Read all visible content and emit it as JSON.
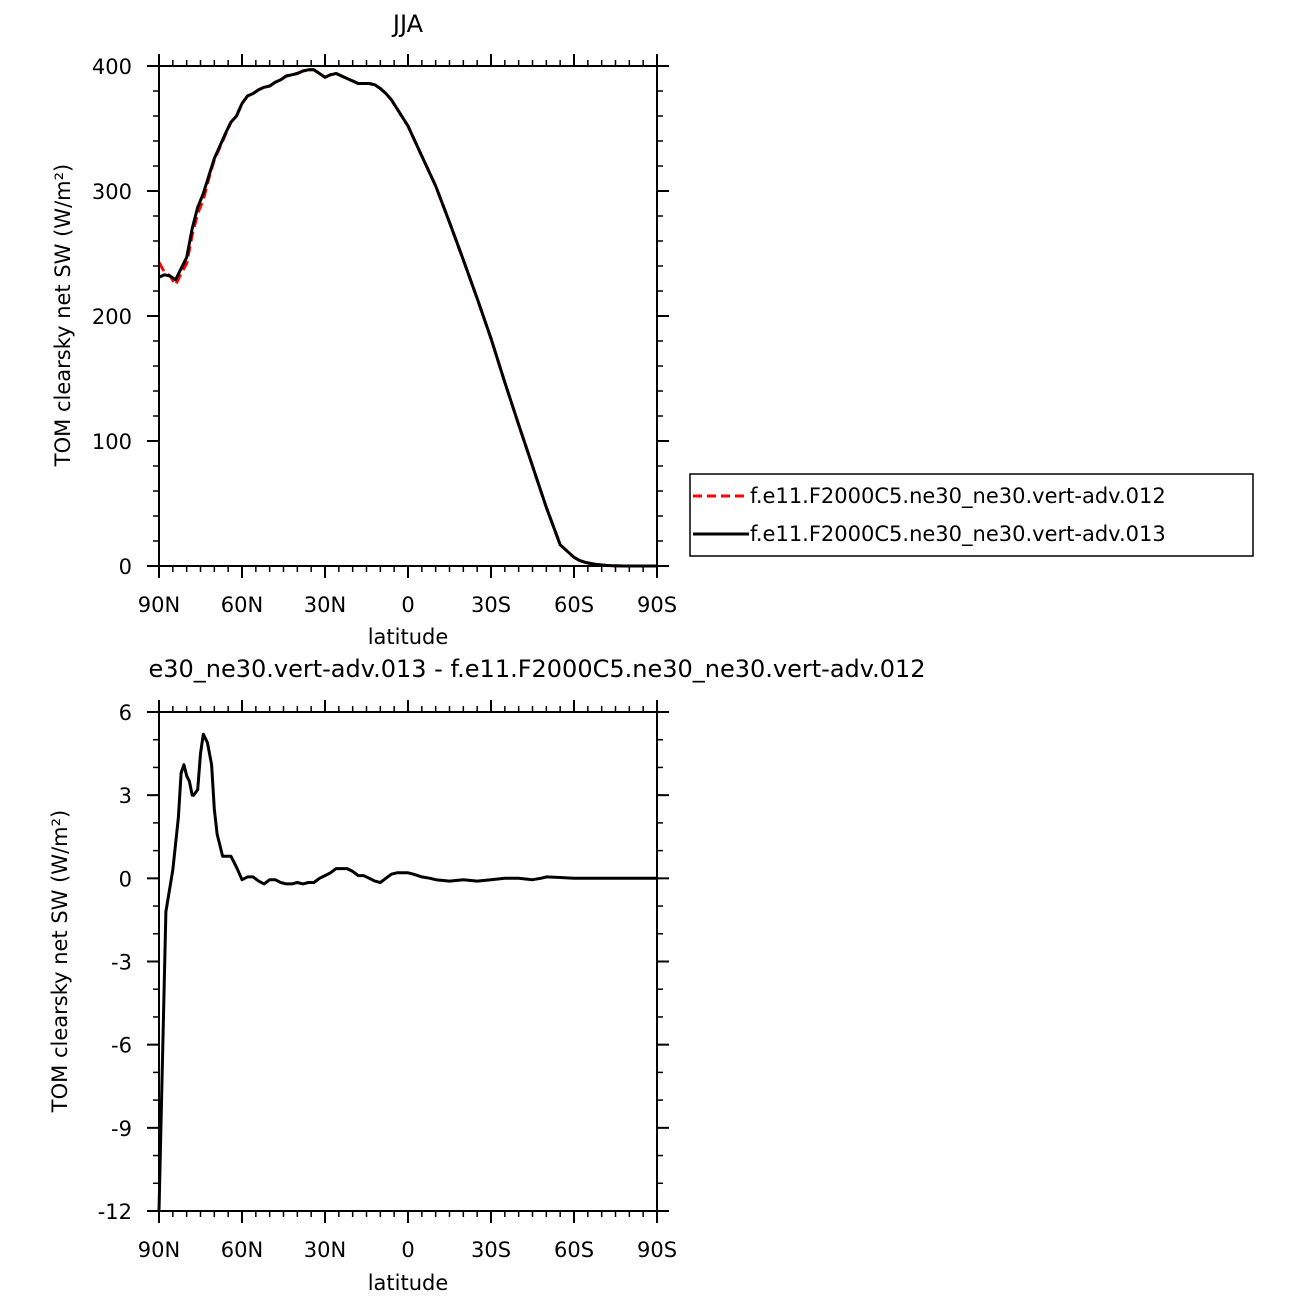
{
  "chart_data": [
    {
      "type": "line",
      "title": "JJA",
      "xlabel": "latitude",
      "ylabel": "TOM clearsky net SW (W/m²)",
      "xlim": [
        90,
        -90
      ],
      "ylim": [
        0,
        400
      ],
      "xticks": [
        90,
        60,
        30,
        0,
        -30,
        -60,
        -90
      ],
      "xtick_labels": [
        "90N",
        "60N",
        "30N",
        "0",
        "30S",
        "60S",
        "90S"
      ],
      "yticks": [
        0,
        100,
        200,
        300,
        400
      ],
      "ytick_labels": [
        "0",
        "100",
        "200",
        "300",
        "400"
      ],
      "legend_position": "right",
      "series": [
        {
          "name": "f.e11.F2000C5.ne30_ne30.vert-adv.012",
          "color": "#ff0000",
          "dash": "dashed",
          "x": [
            90,
            88,
            86,
            84,
            82,
            80,
            78,
            76,
            74,
            72,
            70,
            68,
            66,
            64,
            62,
            60,
            58,
            56,
            54,
            52,
            50,
            48,
            46,
            44,
            42,
            40,
            38,
            36,
            34,
            32,
            30,
            28,
            26,
            24,
            22,
            20,
            18,
            16,
            14,
            12,
            10,
            8,
            6,
            4,
            2,
            0,
            -5,
            -10,
            -15,
            -20,
            -25,
            -30,
            -35,
            -40,
            -45,
            -50,
            -55,
            -60,
            -62,
            -64,
            -66,
            -68,
            -70,
            -72,
            -74,
            -76,
            -78,
            -80,
            -82,
            -84,
            -86,
            -88,
            -90
          ],
          "y": [
            243,
            235,
            232,
            225,
            234,
            242,
            265,
            282,
            293,
            310,
            325,
            335,
            345,
            355,
            360,
            370,
            376,
            378,
            381,
            383,
            384,
            387,
            389,
            392,
            393,
            394,
            396,
            397,
            397,
            394,
            391,
            393,
            394,
            392,
            390,
            388,
            386,
            386,
            386,
            385,
            382,
            378,
            373,
            366,
            359,
            352,
            328,
            304,
            275,
            245,
            214,
            182,
            147,
            113,
            80,
            47,
            17,
            7,
            4.5,
            3.0,
            2.0,
            1.3,
            0.8,
            0.4,
            0.2,
            0.1,
            0,
            0,
            0,
            0,
            0,
            0,
            0
          ]
        },
        {
          "name": "f.e11.F2000C5.ne30_ne30.vert-adv.013",
          "color": "#000000",
          "dash": "solid",
          "x": [
            90,
            88,
            86,
            84,
            82,
            80,
            78,
            76,
            74,
            72,
            70,
            68,
            66,
            64,
            62,
            60,
            58,
            56,
            54,
            52,
            50,
            48,
            46,
            44,
            42,
            40,
            38,
            36,
            34,
            32,
            30,
            28,
            26,
            24,
            22,
            20,
            18,
            16,
            14,
            12,
            10,
            8,
            6,
            4,
            2,
            0,
            -5,
            -10,
            -15,
            -20,
            -25,
            -30,
            -35,
            -40,
            -45,
            -50,
            -55,
            -60,
            -62,
            -64,
            -66,
            -68,
            -70,
            -72,
            -74,
            -76,
            -78,
            -80,
            -82,
            -84,
            -86,
            -88,
            -90
          ],
          "y": [
            231,
            233,
            232,
            229,
            238,
            247,
            270,
            287,
            298,
            312,
            326,
            336,
            346,
            355,
            360,
            370,
            376,
            378,
            381,
            383,
            384,
            387,
            389,
            392,
            393,
            394,
            396,
            397,
            397,
            394,
            391,
            393,
            394,
            392,
            390,
            388,
            386,
            386,
            386,
            385,
            382,
            378,
            373,
            366,
            359,
            352,
            328,
            304,
            275,
            245,
            214,
            182,
            147,
            113,
            80,
            47,
            17,
            7,
            4.5,
            3.0,
            2.0,
            1.3,
            0.8,
            0.4,
            0.2,
            0.1,
            0,
            0,
            0,
            0,
            0,
            0,
            0
          ]
        }
      ]
    },
    {
      "type": "line",
      "title": "e30_ne30.vert-adv.013 - f.e11.F2000C5.ne30_ne30.vert-adv.012",
      "xlabel": "latitude",
      "ylabel": "TOM clearsky net SW (W/m²)",
      "xlim": [
        90,
        -90
      ],
      "ylim": [
        -12,
        6
      ],
      "xticks": [
        90,
        60,
        30,
        0,
        -30,
        -60,
        -90
      ],
      "xtick_labels": [
        "90N",
        "60N",
        "30N",
        "0",
        "30S",
        "60S",
        "90S"
      ],
      "yticks": [
        -12,
        -9,
        -6,
        -3,
        0,
        3,
        6
      ],
      "ytick_labels": [
        "-12",
        "-9",
        "-6",
        "-3",
        "0",
        "3",
        "6"
      ],
      "series": [
        {
          "color": "#000000",
          "dash": "solid",
          "x": [
            90,
            87.5,
            85,
            83,
            82,
            81,
            80,
            79,
            78,
            77.5,
            76,
            75,
            74,
            72.5,
            71,
            70,
            69,
            67,
            66,
            64,
            62,
            60,
            58,
            56,
            54,
            52,
            50,
            48,
            46,
            44,
            42,
            40,
            38,
            36,
            34,
            32,
            30,
            28,
            26,
            24,
            22,
            20,
            18,
            16,
            14,
            12,
            10,
            8,
            6,
            4,
            2,
            0,
            -2,
            -5,
            -8,
            -10,
            -15,
            -20,
            -25,
            -30,
            -35,
            -40,
            -45,
            -48,
            -50,
            -55,
            -60,
            -65,
            -70,
            -75,
            -80,
            -85,
            -90
          ],
          "y": [
            -12,
            -1.2,
            0.3,
            2.2,
            3.8,
            4.1,
            3.7,
            3.5,
            3.0,
            3.0,
            3.2,
            4.5,
            5.2,
            4.9,
            4.1,
            2.5,
            1.6,
            0.8,
            0.8,
            0.8,
            0.4,
            -0.05,
            0.05,
            0.05,
            -0.1,
            -0.2,
            -0.05,
            -0.05,
            -0.15,
            -0.2,
            -0.2,
            -0.15,
            -0.2,
            -0.15,
            -0.15,
            0,
            0.1,
            0.2,
            0.35,
            0.35,
            0.35,
            0.25,
            0.1,
            0.1,
            0,
            -0.1,
            -0.15,
            0,
            0.15,
            0.2,
            0.2,
            0.2,
            0.15,
            0.05,
            0,
            -0.05,
            -0.1,
            -0.05,
            -0.1,
            -0.05,
            0,
            0,
            -0.05,
            0,
            0.05,
            0.03,
            0,
            0,
            0,
            0,
            0,
            0,
            0
          ]
        }
      ]
    }
  ]
}
